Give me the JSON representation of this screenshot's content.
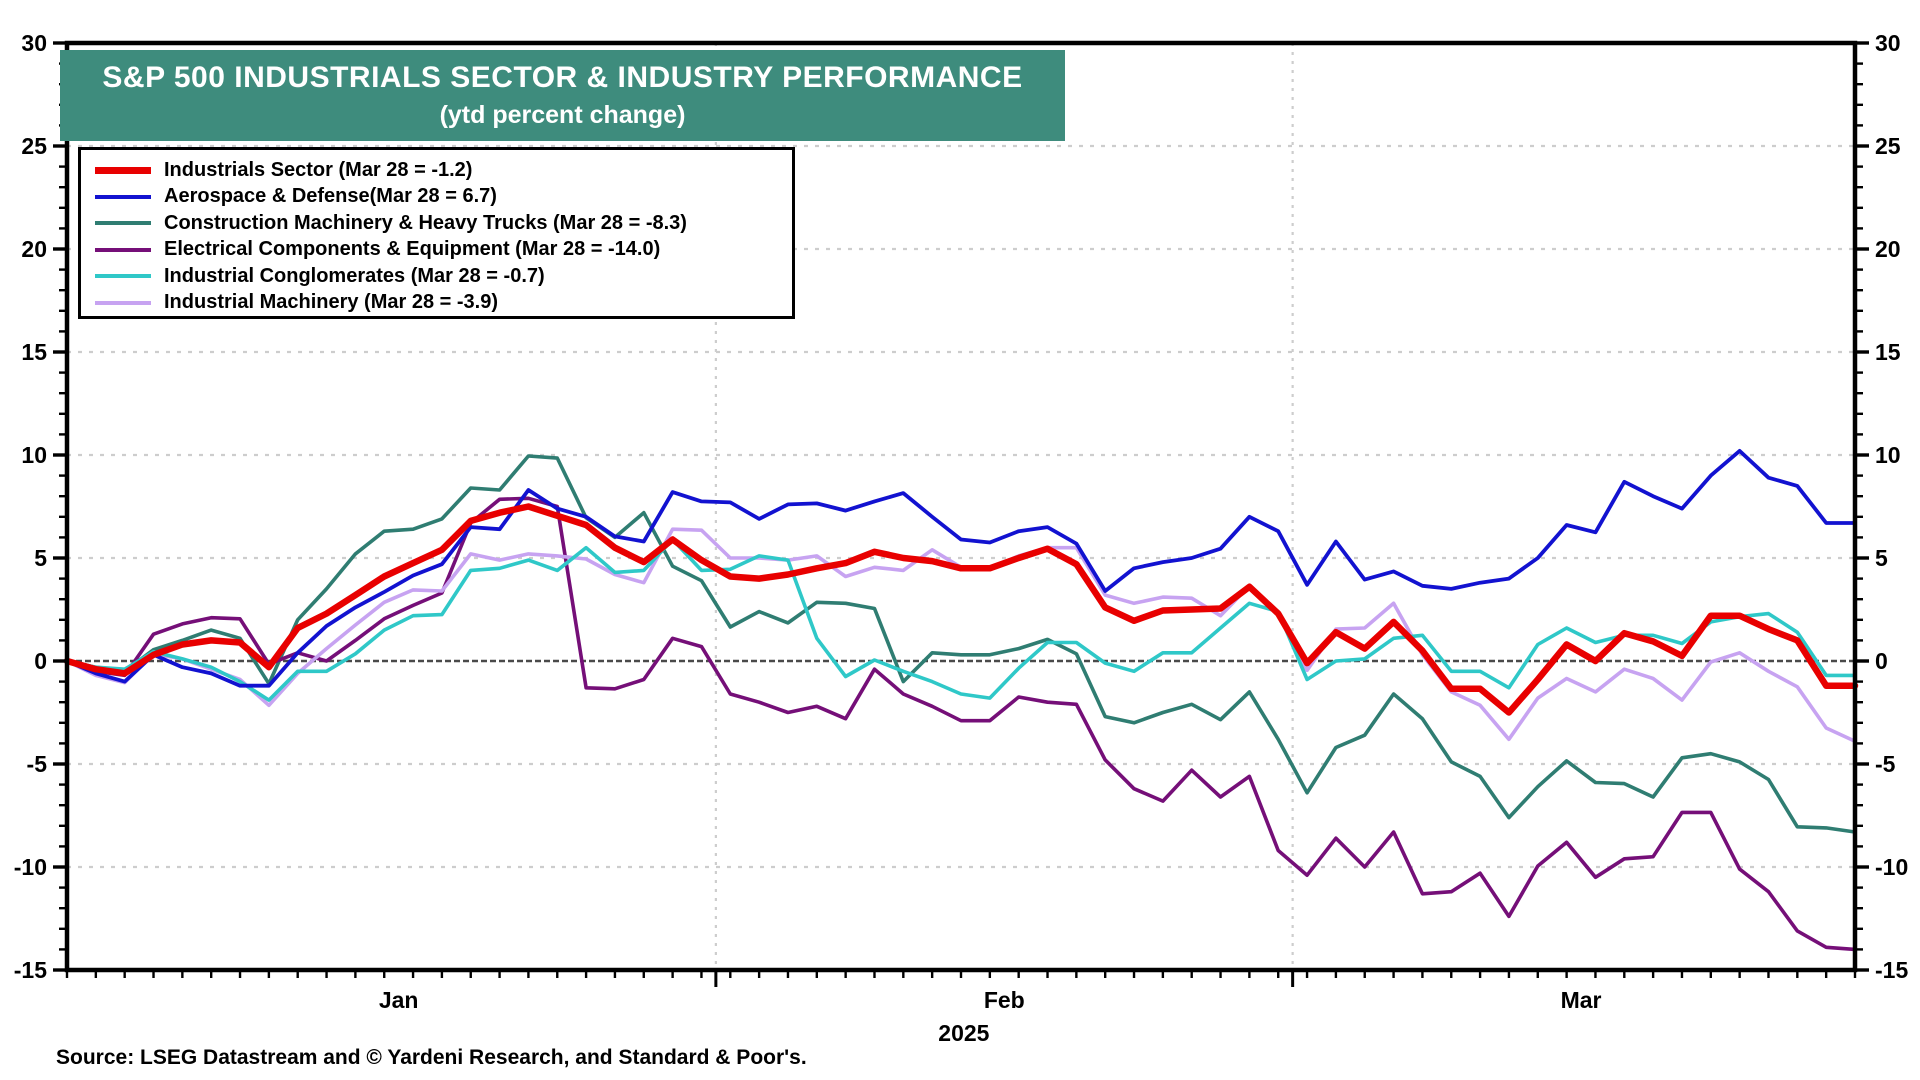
{
  "banner": {
    "title": "S&P 500 INDUSTRIALS SECTOR & INDUSTRY PERFORMANCE",
    "subtitle": "(ytd percent change)",
    "bg_color": "#3E8C7D"
  },
  "source_note": "Source: LSEG Datastream and © Yardeni Research, and Standard & Poor's.",
  "chart_data": {
    "type": "line",
    "title": "S&P 500 INDUSTRIALS SECTOR & INDUSTRY PERFORMANCE",
    "subtitle": "(ytd percent change)",
    "ylabel": "ytd percent change",
    "ylim": [
      -15,
      30
    ],
    "y_tick_step": 5,
    "y_minor_step": 1,
    "y_tick_labels": [
      "30",
      "25",
      "20",
      "15",
      "10",
      "5",
      "0",
      "-5",
      "-10",
      "-15"
    ],
    "grid": "dotted horizontal every 5 units, dotted vertical at month starts, solid dark line at 0",
    "legend_position": "top-left",
    "x_axis": {
      "unit": "trading days, Dec 31 2024 through Mar 28 2025",
      "n_points": 63,
      "month_labels": [
        "Jan",
        "Feb",
        "Mar"
      ],
      "month_label_days": [
        11.5,
        32.5,
        52.5
      ],
      "month_boundary_days": [
        22.5,
        42.5
      ],
      "year_label": "2025",
      "year_label_day": 31.1
    },
    "zero_line": 0,
    "series": [
      {
        "name": "Construction Machinery & Heavy Trucks",
        "legend": "Construction Machinery & Heavy Trucks (Mar 28 = -8.3)",
        "last_value": -8.3,
        "color": "#2F7D72",
        "width": 3.6,
        "values": [
          0,
          -0.3,
          -0.5,
          0.55,
          1.0,
          1.5,
          1.1,
          -1.1,
          2.0,
          3.5,
          5.2,
          6.3,
          6.4,
          6.9,
          8.4,
          8.3,
          9.95,
          9.85,
          6.95,
          6.0,
          7.2,
          4.6,
          3.9,
          1.65,
          2.4,
          1.85,
          2.85,
          2.8,
          2.55,
          -1.0,
          0.4,
          0.3,
          0.3,
          0.6,
          1.05,
          0.35,
          -2.7,
          -3.0,
          -2.5,
          -2.1,
          -2.85,
          -1.5,
          -3.8,
          -6.4,
          -4.2,
          -3.6,
          -1.6,
          -2.8,
          -4.9,
          -5.6,
          -7.6,
          -6.1,
          -4.85,
          -5.9,
          -5.95,
          -6.6,
          -4.7,
          -4.5,
          -4.9,
          -5.75,
          -8.05,
          -8.1,
          -8.3
        ]
      },
      {
        "name": "Electrical Components & Equipment",
        "legend": "Electrical Components & Equipment (Mar 28 = -14.0)",
        "last_value": -14.0,
        "color": "#750F78",
        "width": 3.6,
        "values": [
          0,
          -0.5,
          -0.7,
          1.3,
          1.8,
          2.1,
          2.05,
          -0.15,
          0.4,
          0.0,
          1.0,
          2.05,
          2.7,
          3.3,
          6.7,
          7.85,
          7.9,
          7.5,
          -1.3,
          -1.35,
          -0.9,
          1.1,
          0.7,
          -1.6,
          -2.0,
          -2.5,
          -2.2,
          -2.8,
          -0.4,
          -1.6,
          -2.2,
          -2.9,
          -2.9,
          -1.75,
          -2.0,
          -2.1,
          -4.8,
          -6.2,
          -6.8,
          -5.3,
          -6.6,
          -5.6,
          -9.2,
          -10.4,
          -8.6,
          -10.0,
          -8.3,
          -11.3,
          -11.2,
          -10.3,
          -12.4,
          -9.95,
          -8.8,
          -10.5,
          -9.6,
          -9.5,
          -7.35,
          -7.35,
          -10.1,
          -11.2,
          -13.1,
          -13.9,
          -14.0
        ]
      },
      {
        "name": "Industrial Machinery",
        "legend": "Industrial Machinery (Mar 28 = -3.9)",
        "last_value": -3.9,
        "color": "#C7A3F1",
        "width": 3.6,
        "values": [
          0,
          -0.7,
          -1.05,
          0.35,
          0.1,
          -0.4,
          -0.9,
          -2.15,
          -0.6,
          0.6,
          1.75,
          2.85,
          3.45,
          3.4,
          5.2,
          4.9,
          5.2,
          5.1,
          4.95,
          4.2,
          3.8,
          6.4,
          6.35,
          5.0,
          5.0,
          4.9,
          5.1,
          4.1,
          4.55,
          4.4,
          5.4,
          4.55,
          4.5,
          5.1,
          5.5,
          5.5,
          3.2,
          2.8,
          3.1,
          3.05,
          2.2,
          3.65,
          2.3,
          -0.45,
          1.55,
          1.6,
          2.8,
          0.3,
          -1.5,
          -2.15,
          -3.8,
          -1.8,
          -0.85,
          -1.5,
          -0.4,
          -0.85,
          -1.9,
          -0.05,
          0.4,
          -0.5,
          -1.25,
          -3.25,
          -3.9
        ]
      },
      {
        "name": "Industrial Conglomerates",
        "legend": "Industrial Conglomerates (Mar 28 = -0.7)",
        "last_value": -0.7,
        "color": "#2FC8C8",
        "width": 3.6,
        "values": [
          0,
          -0.3,
          -0.4,
          0.45,
          0.1,
          -0.3,
          -1.0,
          -1.9,
          -0.5,
          -0.5,
          0.35,
          1.5,
          2.2,
          2.25,
          4.4,
          4.5,
          4.9,
          4.4,
          5.5,
          4.3,
          4.4,
          5.9,
          4.4,
          4.45,
          5.1,
          4.9,
          1.1,
          -0.75,
          0.05,
          -0.5,
          -1.0,
          -1.6,
          -1.8,
          -0.35,
          0.9,
          0.9,
          -0.1,
          -0.5,
          0.4,
          0.4,
          1.6,
          2.8,
          2.4,
          -0.9,
          0.0,
          0.1,
          1.1,
          1.25,
          -0.5,
          -0.5,
          -1.3,
          0.8,
          1.6,
          0.9,
          1.25,
          1.25,
          0.85,
          1.9,
          2.15,
          2.3,
          1.4,
          -0.7,
          -0.7
        ]
      },
      {
        "name": "Aerospace & Defense",
        "legend": "Aerospace & Defense(Mar 28 = 6.7)",
        "last_value": 6.7,
        "color": "#1212D0",
        "width": 3.8,
        "values": [
          0,
          -0.6,
          -1.0,
          0.3,
          -0.3,
          -0.6,
          -1.2,
          -1.2,
          0.4,
          1.7,
          2.6,
          3.35,
          4.15,
          4.7,
          6.5,
          6.4,
          8.3,
          7.4,
          7.0,
          6.05,
          5.8,
          8.2,
          7.75,
          7.7,
          6.9,
          7.6,
          7.65,
          7.3,
          7.75,
          8.15,
          7.0,
          5.9,
          5.75,
          6.3,
          6.5,
          5.7,
          3.4,
          4.5,
          4.8,
          5.0,
          5.45,
          7.0,
          6.3,
          3.7,
          5.8,
          3.95,
          4.35,
          3.65,
          3.5,
          3.8,
          4.0,
          5.0,
          6.6,
          6.25,
          8.7,
          8.0,
          7.4,
          9.0,
          10.2,
          8.9,
          8.5,
          6.7,
          6.7
        ]
      },
      {
        "name": "Industrials Sector",
        "legend": "Industrials Sector (Mar 28 = -1.2)",
        "last_value": -1.2,
        "color": "#E80000",
        "width": 6.5,
        "values": [
          0,
          -0.4,
          -0.6,
          0.3,
          0.8,
          1.0,
          0.9,
          -0.3,
          1.6,
          2.3,
          3.2,
          4.1,
          4.75,
          5.4,
          6.8,
          7.2,
          7.5,
          7.05,
          6.6,
          5.5,
          4.8,
          5.9,
          4.9,
          4.1,
          4.0,
          4.2,
          4.5,
          4.75,
          5.3,
          5.0,
          4.85,
          4.5,
          4.5,
          5.0,
          5.45,
          4.7,
          2.6,
          1.95,
          2.45,
          2.5,
          2.55,
          3.6,
          2.3,
          -0.1,
          1.4,
          0.6,
          1.9,
          0.5,
          -1.35,
          -1.35,
          -2.5,
          -0.9,
          0.8,
          0.0,
          1.35,
          0.95,
          0.25,
          2.2,
          2.2,
          1.55,
          1.0,
          -1.2,
          -1.2
        ]
      }
    ],
    "legend_order": [
      "Industrials Sector",
      "Aerospace & Defense",
      "Construction Machinery & Heavy Trucks",
      "Electrical Components & Equipment",
      "Industrial Conglomerates",
      "Industrial Machinery"
    ]
  },
  "colors": {
    "grid": "#CDCDCD",
    "zero_line": "#4A4A4A",
    "frame": "#000000"
  }
}
